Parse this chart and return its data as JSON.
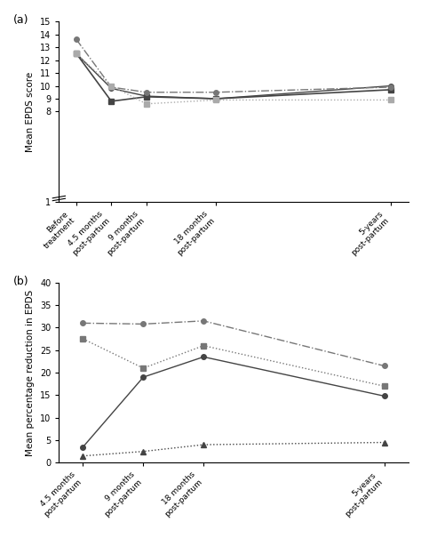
{
  "panel_a": {
    "x_labels": [
      "Before\ntreatment",
      "4.5 months\npost-partum",
      "9 months\npost-partum",
      "18 months\npost-partum",
      "5-years\npost-partum"
    ],
    "x_positions": [
      0,
      1,
      2,
      4,
      9
    ],
    "lines": [
      {
        "label": "solid_circle",
        "values": [
          12.5,
          9.8,
          9.2,
          9.0,
          10.0
        ],
        "linestyle": "solid",
        "marker": "o",
        "color": "#444444",
        "linewidth": 1.0,
        "markersize": 4
      },
      {
        "label": "solid_square",
        "values": [
          12.5,
          8.8,
          9.15,
          9.0,
          9.7
        ],
        "linestyle": "solid",
        "marker": "s",
        "color": "#444444",
        "linewidth": 1.2,
        "markersize": 4
      },
      {
        "label": "dashdot_circle",
        "values": [
          13.6,
          9.9,
          9.5,
          9.5,
          9.9
        ],
        "linestyle": "dashdot",
        "marker": "o",
        "color": "#777777",
        "linewidth": 1.0,
        "markersize": 4
      },
      {
        "label": "dotted_square",
        "values": [
          12.5,
          10.0,
          8.6,
          8.9,
          8.9
        ],
        "linestyle": "dotted",
        "marker": "s",
        "color": "#aaaaaa",
        "linewidth": 1.0,
        "markersize": 4
      }
    ],
    "ylabel": "Mean EPDS score",
    "ylim": [
      1,
      15
    ],
    "yticks": [
      1,
      8,
      9,
      10,
      11,
      12,
      13,
      14,
      15
    ],
    "panel_label": "(a)"
  },
  "panel_b": {
    "x_labels": [
      "4.5 months\npost-partum",
      "9 months\npost-partum",
      "18 months\npost-partum",
      "5-years\npost-partum"
    ],
    "x_positions": [
      0,
      1,
      2,
      5
    ],
    "lines": [
      {
        "label": "solid_circle",
        "values": [
          3.5,
          19.0,
          23.5,
          14.8
        ],
        "linestyle": "solid",
        "marker": "o",
        "color": "#444444",
        "linewidth": 1.0,
        "markersize": 4
      },
      {
        "label": "dotted_square",
        "values": [
          27.5,
          21.0,
          26.0,
          17.0
        ],
        "linestyle": "dotted",
        "marker": "s",
        "color": "#777777",
        "linewidth": 1.0,
        "markersize": 4
      },
      {
        "label": "dashdot_circle",
        "values": [
          31.0,
          30.8,
          31.5,
          21.5
        ],
        "linestyle": "dashdot",
        "marker": "o",
        "color": "#777777",
        "linewidth": 1.0,
        "markersize": 4
      },
      {
        "label": "dotted_triangle",
        "values": [
          1.5,
          2.5,
          4.0,
          4.5
        ],
        "linestyle": "dotted",
        "marker": "^",
        "color": "#444444",
        "linewidth": 1.0,
        "markersize": 4
      }
    ],
    "ylabel": "Mean percentage reduction in EPDS",
    "ylim": [
      0,
      40
    ],
    "yticks": [
      0,
      5,
      10,
      15,
      20,
      25,
      30,
      35,
      40
    ],
    "panel_label": "(b)"
  }
}
